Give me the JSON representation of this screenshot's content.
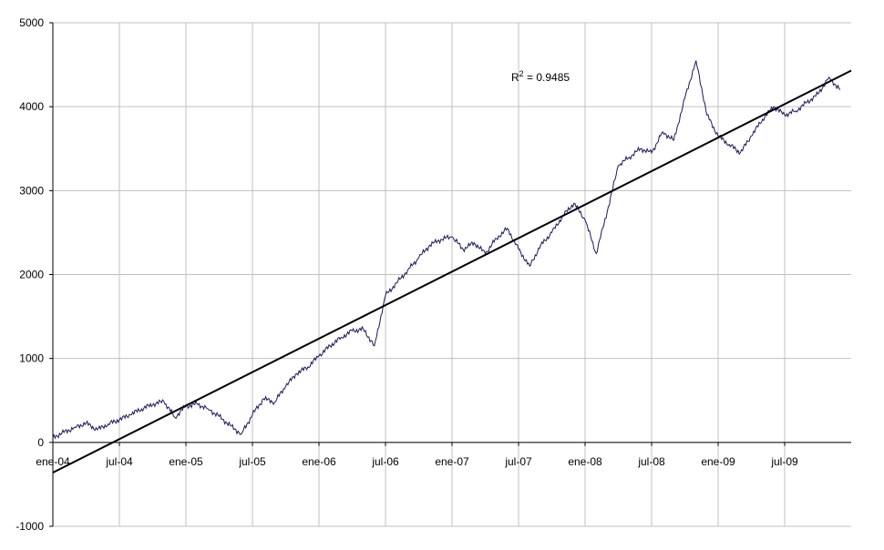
{
  "chart_data": {
    "type": "line",
    "title": "",
    "xlabel": "",
    "ylabel": "",
    "ylim": [
      -1000,
      5000
    ],
    "yticks": [
      -1000,
      0,
      1000,
      2000,
      3000,
      4000,
      5000
    ],
    "xticks": [
      "ene-04",
      "jul-04",
      "ene-05",
      "jul-05",
      "ene-06",
      "jul-06",
      "ene-07",
      "jul-07",
      "ene-08",
      "jul-08",
      "ene-09",
      "jul-09"
    ],
    "grid": true,
    "legend": "none",
    "colors": {
      "series": "#1a1a5e",
      "trend": "#000000",
      "grid": "#c0c0c0"
    },
    "series": [
      {
        "points": [
          [
            "ene-04",
            60
          ],
          [
            "feb-04",
            120
          ],
          [
            "mar-04",
            180
          ],
          [
            "abr-04",
            230
          ],
          [
            "may-04",
            150
          ],
          [
            "jun-04",
            220
          ],
          [
            "jul-04",
            270
          ],
          [
            "ago-04",
            330
          ],
          [
            "sep-04",
            400
          ],
          [
            "oct-04",
            450
          ],
          [
            "nov-04",
            490
          ],
          [
            "dic-04",
            300
          ],
          [
            "ene-05",
            430
          ],
          [
            "feb-05",
            460
          ],
          [
            "mar-05",
            400
          ],
          [
            "abr-05",
            310
          ],
          [
            "may-05",
            200
          ],
          [
            "jun-05",
            100
          ],
          [
            "jul-05",
            330
          ],
          [
            "ago-05",
            520
          ],
          [
            "sep-05",
            480
          ],
          [
            "oct-05",
            670
          ],
          [
            "nov-05",
            820
          ],
          [
            "dic-05",
            900
          ],
          [
            "ene-06",
            1030
          ],
          [
            "feb-06",
            1150
          ],
          [
            "mar-06",
            1250
          ],
          [
            "abr-06",
            1330
          ],
          [
            "may-06",
            1350
          ],
          [
            "jun-06",
            1150
          ],
          [
            "jul-06",
            1750
          ],
          [
            "ago-06",
            1900
          ],
          [
            "sep-06",
            2050
          ],
          [
            "oct-06",
            2200
          ],
          [
            "nov-06",
            2350
          ],
          [
            "dic-06",
            2420
          ],
          [
            "ene-07",
            2450
          ],
          [
            "feb-07",
            2300
          ],
          [
            "mar-07",
            2380
          ],
          [
            "abr-07",
            2250
          ],
          [
            "may-07",
            2430
          ],
          [
            "jun-07",
            2550
          ],
          [
            "jul-07",
            2300
          ],
          [
            "ago-07",
            2100
          ],
          [
            "sep-07",
            2350
          ],
          [
            "oct-07",
            2500
          ],
          [
            "nov-07",
            2700
          ],
          [
            "dic-07",
            2850
          ],
          [
            "ene-08",
            2650
          ],
          [
            "feb-08",
            2250
          ],
          [
            "mar-08",
            2750
          ],
          [
            "abr-08",
            3300
          ],
          [
            "may-08",
            3400
          ],
          [
            "jun-08",
            3500
          ],
          [
            "jul-08",
            3450
          ],
          [
            "ago-08",
            3700
          ],
          [
            "sep-08",
            3600
          ],
          [
            "oct-08",
            4100
          ],
          [
            "nov-08",
            4550
          ],
          [
            "dic-08",
            3900
          ],
          [
            "ene-09",
            3650
          ],
          [
            "feb-09",
            3550
          ],
          [
            "mar-09",
            3450
          ],
          [
            "abr-09",
            3650
          ],
          [
            "may-09",
            3850
          ],
          [
            "jun-09",
            4000
          ],
          [
            "jul-09",
            3900
          ],
          [
            "ago-09",
            3950
          ],
          [
            "sep-09",
            4050
          ],
          [
            "oct-09",
            4150
          ],
          [
            "nov-09",
            4350
          ],
          [
            "dic-09",
            4200
          ]
        ]
      }
    ],
    "trendline": {
      "type": "linear",
      "start": [
        "ene-04",
        -360
      ],
      "end": [
        "dic-09",
        4430
      ]
    },
    "annotations": [
      {
        "label": "R",
        "superscript": "2",
        "text": " = 0.9485"
      }
    ]
  }
}
